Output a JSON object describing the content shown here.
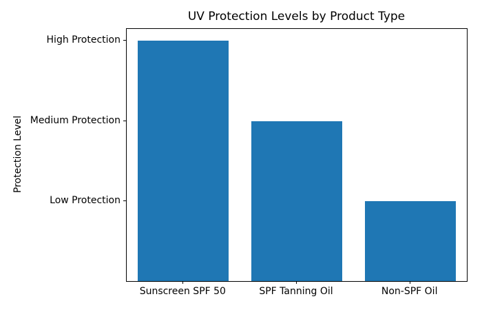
{
  "chart_data": {
    "type": "bar",
    "title": "UV Protection Levels by Product Type",
    "xlabel": "",
    "ylabel": "Protection Level",
    "categories": [
      "Sunscreen SPF 50",
      "SPF Tanning Oil",
      "Non-SPF Oil"
    ],
    "values": [
      3,
      2,
      1
    ],
    "value_labels": [
      "High Protection",
      "Medium Protection",
      "Low Protection"
    ],
    "ytick_values": [
      1,
      2,
      3
    ],
    "ytick_labels": [
      "Low Protection",
      "Medium Protection",
      "High Protection"
    ],
    "ylim": [
      0,
      3.15
    ],
    "bar_width_fraction": 0.8,
    "bar_color": "#1f77b4",
    "grid": false,
    "legend": null,
    "background_color": "#ffffff",
    "axis_color": "#000000",
    "text_color": "#000000"
  }
}
